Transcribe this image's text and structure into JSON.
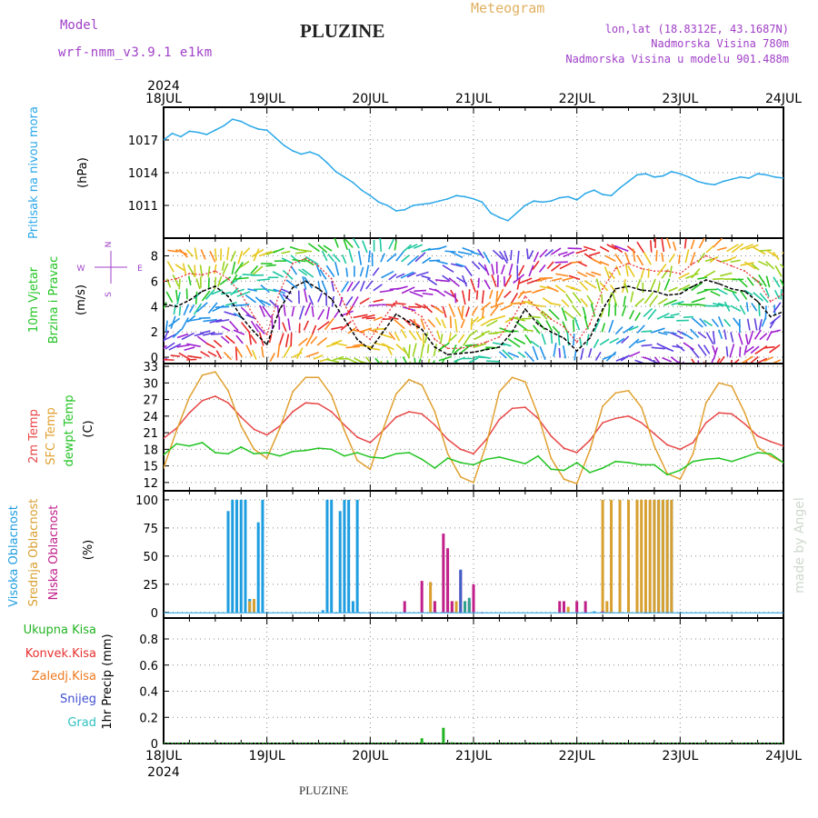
{
  "header": {
    "model_label": "Model",
    "model_name": "wrf-nmm_v3.9.1  e1km",
    "title": "PLUZINE",
    "meteogram": "Meteogram",
    "lonlat": "lon,lat (18.8312E, 43.1687N)",
    "elevation": "Nadmorska Visina 780m",
    "model_elevation": "Nadmorska Visina u modelu 901.488m",
    "credit": "made by Angel",
    "footer": "PLUZINE"
  },
  "colors": {
    "pressure": "#2aa8e8",
    "wind_speed": "#000000",
    "wind_gust": "#e83030",
    "temp_2m": "#e84848",
    "temp_sfc": "#e0a030",
    "dewpoint": "#22c422",
    "cloud_high": "#1e9ee0",
    "cloud_mid": "#d8a030",
    "cloud_low": "#c0208a",
    "precip_total": "#22b422",
    "precip_conv": "#e83030",
    "precip_frozen": "#ee7a20",
    "precip_snow": "#4050d0",
    "precip_grad": "#30c0c0",
    "model_label": "#a040c8",
    "meteogram": "#e0b060"
  },
  "time_axis": {
    "year": "2024",
    "ticks": [
      "18JUL",
      "19JUL",
      "20JUL",
      "21JUL",
      "22JUL",
      "23JUL",
      "24JUL"
    ],
    "hours_per_tick": 24
  },
  "chart_data": [
    {
      "type": "line",
      "panel": "pressure",
      "ylabel": [
        "Pritisak na nivou mora",
        "(hPa)"
      ],
      "yticks": [
        1011,
        1014,
        1017
      ],
      "ylim": [
        1008,
        1020
      ],
      "grid": true,
      "series": [
        {
          "key": "pressure",
          "x": [
            0,
            2,
            4,
            6,
            8,
            10,
            12,
            14,
            16,
            18,
            20,
            22,
            24,
            26,
            28,
            30,
            32,
            34,
            36,
            38,
            40,
            42,
            44,
            46,
            48,
            50,
            52,
            54,
            56,
            58,
            60,
            62,
            64,
            66,
            68,
            70,
            72,
            74,
            76,
            78,
            80,
            82,
            84,
            86,
            88,
            90,
            92,
            94,
            96,
            98,
            100,
            102,
            104,
            106,
            108,
            110,
            112,
            114,
            116,
            118,
            120,
            122,
            124,
            126,
            128,
            130,
            132,
            134,
            136,
            138,
            140,
            142,
            144
          ],
          "values": [
            1017.0,
            1017.6,
            1017.3,
            1017.8,
            1017.7,
            1017.5,
            1017.9,
            1018.3,
            1018.9,
            1018.7,
            1018.3,
            1018.0,
            1017.9,
            1017.2,
            1016.5,
            1016.0,
            1015.7,
            1015.9,
            1015.6,
            1014.9,
            1014.1,
            1013.6,
            1013.1,
            1012.4,
            1011.9,
            1011.3,
            1011.0,
            1010.5,
            1010.6,
            1011.0,
            1011.1,
            1011.2,
            1011.4,
            1011.6,
            1011.9,
            1011.8,
            1011.6,
            1011.3,
            1010.3,
            1009.9,
            1009.6,
            1010.3,
            1011.0,
            1011.4,
            1011.3,
            1011.4,
            1011.7,
            1011.8,
            1011.5,
            1012.1,
            1012.4,
            1012.0,
            1011.9,
            1012.6,
            1013.2,
            1013.8,
            1013.9,
            1013.6,
            1013.7,
            1014.1,
            1013.9,
            1013.6,
            1013.2,
            1013.0,
            1012.9,
            1013.2,
            1013.4,
            1013.6,
            1013.5,
            1013.9,
            1013.8,
            1013.6,
            1013.5
          ]
        }
      ]
    },
    {
      "type": "line",
      "panel": "wind",
      "ylabel": [
        "10m Vjetar",
        "Brzina i Pravac",
        "(m/s)"
      ],
      "compass": {
        "n": "N",
        "e": "E",
        "w": "W",
        "s": "S"
      },
      "yticks": [
        0,
        2,
        4,
        6,
        8
      ],
      "ylim": [
        -0.5,
        9.4
      ],
      "grid": true,
      "series": [
        {
          "key": "wind_speed",
          "x": [
            0,
            3,
            6,
            9,
            12,
            15,
            18,
            21,
            24,
            27,
            30,
            33,
            36,
            39,
            42,
            45,
            48,
            51,
            54,
            57,
            60,
            63,
            66,
            69,
            72,
            75,
            78,
            81,
            84,
            87,
            90,
            93,
            96,
            99,
            102,
            105,
            108,
            111,
            114,
            117,
            120,
            123,
            126,
            129,
            132,
            135,
            138,
            141,
            144
          ],
          "values": [
            4.2,
            4.0,
            4.5,
            5.2,
            5.6,
            4.8,
            3.2,
            2.0,
            1.0,
            3.8,
            5.5,
            6.0,
            5.4,
            4.6,
            3.0,
            1.4,
            0.6,
            2.0,
            3.4,
            2.8,
            2.2,
            0.8,
            0.2,
            0.3,
            0.4,
            0.6,
            0.8,
            2.0,
            3.8,
            2.6,
            2.0,
            1.5,
            0.5,
            1.5,
            3.8,
            5.4,
            5.6,
            5.3,
            5.2,
            4.9,
            5.0,
            5.6,
            6.1,
            5.8,
            5.4,
            5.2,
            4.4,
            3.2,
            3.6
          ]
        },
        {
          "key": "wind_gust",
          "x": [
            0,
            3,
            6,
            9,
            12,
            15,
            18,
            21,
            24,
            27,
            30,
            33,
            36,
            39,
            42,
            45,
            48,
            51,
            54,
            57,
            60,
            63,
            66,
            69,
            72,
            75,
            78,
            81,
            84,
            87,
            90,
            93,
            96,
            99,
            102,
            105,
            108,
            111,
            114,
            117,
            120,
            123,
            126,
            129,
            132,
            135,
            138,
            141,
            144
          ],
          "values": [
            6.0,
            6.2,
            6.6,
            6.5,
            6.8,
            6.2,
            5.0,
            3.2,
            1.8,
            5.2,
            7.4,
            7.8,
            7.2,
            6.2,
            4.2,
            2.2,
            1.4,
            3.0,
            4.4,
            3.8,
            3.2,
            1.4,
            0.7,
            0.7,
            0.9,
            1.2,
            1.6,
            3.0,
            4.8,
            3.8,
            3.0,
            2.4,
            1.2,
            2.6,
            5.4,
            7.0,
            7.4,
            7.0,
            6.8,
            6.8,
            6.6,
            7.4,
            8.0,
            7.6,
            7.2,
            6.8,
            6.0,
            4.4,
            5.0
          ]
        }
      ]
    },
    {
      "type": "line",
      "panel": "temperature",
      "ylabel": [
        "2m Temp",
        "SFC Temp",
        "dewpt Temp",
        "(C)"
      ],
      "yticks": [
        12,
        15,
        18,
        21,
        24,
        27,
        30,
        33
      ],
      "ylim": [
        10.5,
        33.5
      ],
      "grid": true,
      "series": [
        {
          "key": "temp_2m",
          "x": [
            0,
            3,
            6,
            9,
            12,
            15,
            18,
            21,
            24,
            27,
            30,
            33,
            36,
            39,
            42,
            45,
            48,
            51,
            54,
            57,
            60,
            63,
            66,
            69,
            72,
            75,
            78,
            81,
            84,
            87,
            90,
            93,
            96,
            99,
            102,
            105,
            108,
            111,
            114,
            117,
            120,
            123,
            126,
            129,
            132,
            135,
            138,
            141,
            144
          ],
          "values": [
            20.0,
            21.8,
            24.6,
            26.8,
            27.6,
            26.4,
            23.8,
            21.6,
            20.6,
            22.2,
            24.8,
            26.4,
            26.2,
            24.8,
            22.4,
            20.2,
            19.2,
            21.4,
            23.8,
            24.8,
            24.4,
            22.4,
            19.8,
            18.0,
            17.2,
            19.8,
            23.4,
            25.4,
            25.6,
            23.6,
            20.4,
            18.2,
            17.4,
            19.6,
            22.8,
            23.6,
            24.0,
            22.8,
            20.8,
            18.8,
            18.0,
            19.2,
            22.8,
            24.6,
            24.4,
            22.6,
            20.4,
            19.4,
            18.6
          ]
        },
        {
          "key": "temp_sfc",
          "x": [
            0,
            3,
            6,
            9,
            12,
            15,
            18,
            21,
            24,
            27,
            30,
            33,
            36,
            39,
            42,
            45,
            48,
            51,
            54,
            57,
            60,
            63,
            66,
            69,
            72,
            75,
            78,
            81,
            84,
            87,
            90,
            93,
            96,
            99,
            102,
            105,
            108,
            111,
            114,
            117,
            120,
            123,
            126,
            129,
            132,
            135,
            138,
            141,
            144
          ],
          "values": [
            14.6,
            21.4,
            27.4,
            31.4,
            32.0,
            28.6,
            22.2,
            18.0,
            16.4,
            21.8,
            28.4,
            31.0,
            31.0,
            27.8,
            21.4,
            16.0,
            14.4,
            21.6,
            28.0,
            30.6,
            29.6,
            24.8,
            17.2,
            13.0,
            12.0,
            19.0,
            28.4,
            31.0,
            30.2,
            24.2,
            16.4,
            12.6,
            11.8,
            17.8,
            25.8,
            28.2,
            28.6,
            25.6,
            18.6,
            13.6,
            12.6,
            17.2,
            26.4,
            30.0,
            29.4,
            24.6,
            18.4,
            16.8,
            15.6
          ]
        },
        {
          "key": "dewpoint",
          "x": [
            0,
            3,
            6,
            9,
            12,
            15,
            18,
            21,
            24,
            27,
            30,
            33,
            36,
            39,
            42,
            45,
            48,
            51,
            54,
            57,
            60,
            63,
            66,
            69,
            72,
            75,
            78,
            81,
            84,
            87,
            90,
            93,
            96,
            99,
            102,
            105,
            108,
            111,
            114,
            117,
            120,
            123,
            126,
            129,
            132,
            135,
            138,
            141,
            144
          ],
          "values": [
            17.0,
            19.0,
            18.6,
            19.2,
            17.4,
            17.2,
            18.4,
            17.2,
            17.4,
            16.8,
            17.6,
            17.8,
            18.2,
            18.0,
            16.8,
            17.4,
            16.6,
            16.4,
            17.2,
            17.4,
            16.2,
            14.6,
            16.4,
            15.6,
            15.2,
            16.2,
            16.6,
            16.0,
            15.4,
            16.8,
            14.4,
            14.2,
            15.6,
            13.8,
            14.6,
            15.8,
            15.6,
            15.2,
            15.2,
            13.4,
            14.2,
            15.8,
            16.2,
            16.4,
            15.8,
            16.6,
            17.4,
            17.2,
            15.6
          ]
        }
      ]
    },
    {
      "type": "bar",
      "panel": "clouds",
      "ylabel": [
        "Visoka Oblacnost",
        "Srednja Oblacnost",
        "Niska Oblacnost",
        "(%)"
      ],
      "yticks": [
        0,
        25,
        50,
        75,
        100
      ],
      "ylim": [
        -5,
        108
      ],
      "grid": true,
      "series": [
        {
          "key": "cloud_high",
          "x": [
            15,
            16,
            17,
            18,
            19,
            20,
            21,
            22,
            23,
            24,
            37,
            38,
            39,
            40,
            41,
            42,
            43,
            44,
            45,
            46,
            48,
            98,
            100,
            110,
            112,
            113,
            114,
            115,
            116,
            117,
            118
          ],
          "values": [
            90,
            100,
            100,
            100,
            100,
            12,
            10,
            80,
            100,
            0,
            2,
            100,
            100,
            0,
            90,
            100,
            100,
            10,
            100,
            0,
            0,
            0,
            1,
            0,
            0,
            0,
            100,
            100,
            100,
            100,
            100
          ]
        },
        {
          "key": "cloud_mid",
          "x": [
            16,
            20,
            21,
            62,
            63,
            67,
            68,
            70,
            92,
            94,
            96,
            102,
            103,
            104,
            106,
            108,
            110,
            111,
            112,
            113,
            114,
            115,
            116,
            117,
            118
          ],
          "values": [
            0,
            10,
            12,
            27,
            10,
            10,
            10,
            10,
            0,
            5,
            2,
            100,
            10,
            100,
            100,
            100,
            100,
            100,
            100,
            100,
            100,
            100,
            100,
            100,
            100
          ]
        },
        {
          "key": "cloud_low",
          "x": [
            48,
            56,
            60,
            63,
            65,
            66,
            67,
            69,
            71,
            72,
            74,
            92,
            93,
            96,
            98,
            102,
            112,
            115,
            117
          ],
          "values": [
            0,
            10,
            28,
            10,
            70,
            57,
            10,
            37,
            10,
            25,
            0,
            10,
            10,
            10,
            10,
            1,
            0,
            0,
            0
          ]
        },
        {
          "key": "cloud_extra_blue",
          "x": [
            69
          ],
          "values": [
            38
          ]
        },
        {
          "key": "cloud_extra_teal",
          "x": [
            70,
            71
          ],
          "values": [
            10,
            13
          ]
        }
      ]
    },
    {
      "type": "bar",
      "panel": "precipitation",
      "ylabel": [
        "1hr Precip (mm)"
      ],
      "legend": [
        "Ukupna Kisa",
        "Konvek.Kisa",
        "Zaledj.Kisa",
        "Snijeg",
        "Grad"
      ],
      "yticks": [
        0,
        0.2,
        0.4,
        0.6,
        0.8
      ],
      "ylim": [
        0,
        0.96
      ],
      "grid": true,
      "series": [
        {
          "key": "precip_total",
          "x": [
            60,
            65,
            67,
            71
          ],
          "values": [
            0.04,
            0.12,
            0.01,
            0.005
          ]
        }
      ]
    }
  ]
}
